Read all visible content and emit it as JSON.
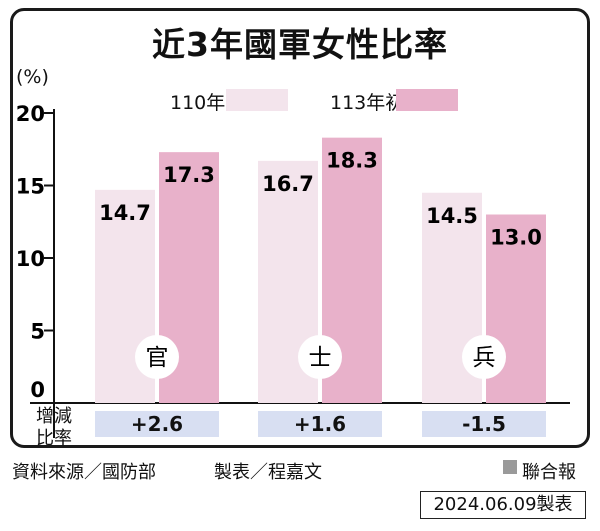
{
  "chart_data": {
    "type": "bar",
    "title": "近3年國軍女性比率",
    "unit_label": "(%)",
    "categories": [
      "官",
      "士",
      "兵"
    ],
    "series": [
      {
        "name": "110年初",
        "values": [
          14.7,
          16.7,
          14.5
        ],
        "color": "#f3e4ec"
      },
      {
        "name": "113年初",
        "values": [
          17.3,
          18.3,
          13.0
        ],
        "color": "#e8b1ca"
      }
    ],
    "value_labels": [
      [
        "14.7",
        "16.7",
        "14.5"
      ],
      [
        "17.3",
        "18.3",
        "13.0"
      ]
    ],
    "yticks": [
      "0",
      "5",
      "10",
      "15",
      "20"
    ],
    "ylim": [
      0,
      20
    ],
    "legend_position": "top",
    "grid": false
  },
  "diff": {
    "label_line1": "增減",
    "label_line2": "比率",
    "values": [
      "+2.6",
      "+1.6",
      "-1.5"
    ],
    "box_color": "#d8dff2"
  },
  "footer": {
    "source": "資料來源／國防部",
    "maker": "製表／程嘉文",
    "publisher": "聯合報",
    "date": "2024.06.09製表"
  }
}
